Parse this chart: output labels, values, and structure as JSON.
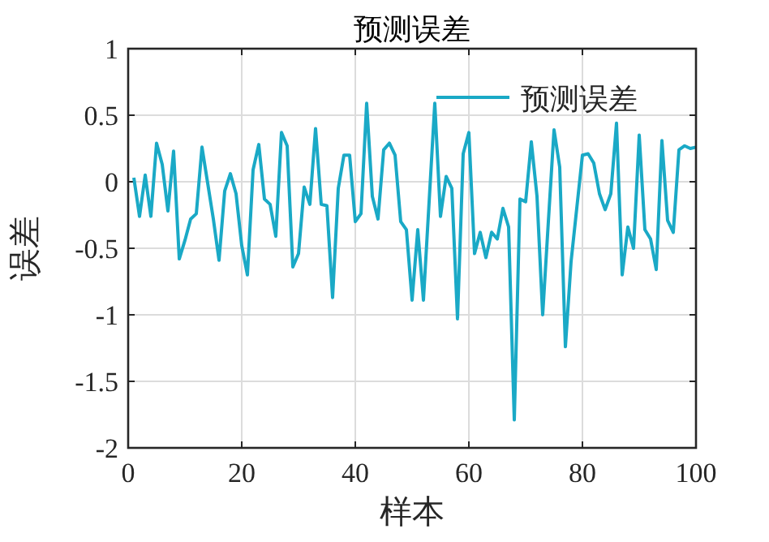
{
  "chart_data": {
    "type": "line",
    "title": "预测误差",
    "xlabel": "样本",
    "ylabel": "误差",
    "x": [
      1,
      2,
      3,
      4,
      5,
      6,
      7,
      8,
      9,
      10,
      11,
      12,
      13,
      14,
      15,
      16,
      17,
      18,
      19,
      20,
      21,
      22,
      23,
      24,
      25,
      26,
      27,
      28,
      29,
      30,
      31,
      32,
      33,
      34,
      35,
      36,
      37,
      38,
      39,
      40,
      41,
      42,
      43,
      44,
      45,
      46,
      47,
      48,
      49,
      50,
      51,
      52,
      53,
      54,
      55,
      56,
      57,
      58,
      59,
      60,
      61,
      62,
      63,
      64,
      65,
      66,
      67,
      68,
      69,
      70,
      71,
      72,
      73,
      74,
      75,
      76,
      77,
      78,
      79,
      80,
      81,
      82,
      83,
      84,
      85,
      86,
      87,
      88,
      89,
      90,
      91,
      92,
      93,
      94,
      95,
      96,
      97,
      98,
      99,
      100
    ],
    "series": [
      {
        "name": "预测误差",
        "color": "#1aa9c6",
        "values": [
          0.03,
          -0.26,
          0.05,
          -0.26,
          0.29,
          0.13,
          -0.22,
          0.23,
          -0.58,
          -0.44,
          -0.28,
          -0.24,
          0.26,
          -0.01,
          -0.28,
          -0.59,
          -0.07,
          0.06,
          -0.09,
          -0.48,
          -0.7,
          0.09,
          0.28,
          -0.13,
          -0.17,
          -0.41,
          0.37,
          0.27,
          -0.64,
          -0.54,
          -0.04,
          -0.17,
          0.4,
          -0.17,
          -0.18,
          -0.87,
          -0.05,
          0.2,
          0.2,
          -0.3,
          -0.24,
          0.59,
          -0.11,
          -0.28,
          0.24,
          0.29,
          0.2,
          -0.3,
          -0.36,
          -0.89,
          -0.36,
          -0.89,
          -0.15,
          0.59,
          -0.26,
          0.04,
          -0.05,
          -1.03,
          0.21,
          0.37,
          -0.54,
          -0.38,
          -0.57,
          -0.38,
          -0.43,
          -0.2,
          -0.34,
          -1.79,
          -0.13,
          -0.15,
          0.3,
          -0.11,
          -1.0,
          -0.3,
          0.39,
          0.11,
          -1.24,
          -0.6,
          -0.2,
          0.2,
          0.21,
          0.14,
          -0.09,
          -0.21,
          -0.09,
          0.44,
          -0.7,
          -0.34,
          -0.5,
          0.35,
          -0.36,
          -0.43,
          -0.66,
          0.31,
          -0.29,
          -0.38,
          0.24,
          0.27,
          0.25,
          0.26
        ]
      }
    ],
    "xlim": [
      0,
      100
    ],
    "ylim": [
      -2,
      1
    ],
    "xticks": [
      0,
      20,
      40,
      60,
      80,
      100
    ],
    "yticks": [
      -2,
      -1.5,
      -1,
      -0.5,
      0,
      0.5,
      1
    ],
    "grid": true,
    "legend": "top right"
  }
}
